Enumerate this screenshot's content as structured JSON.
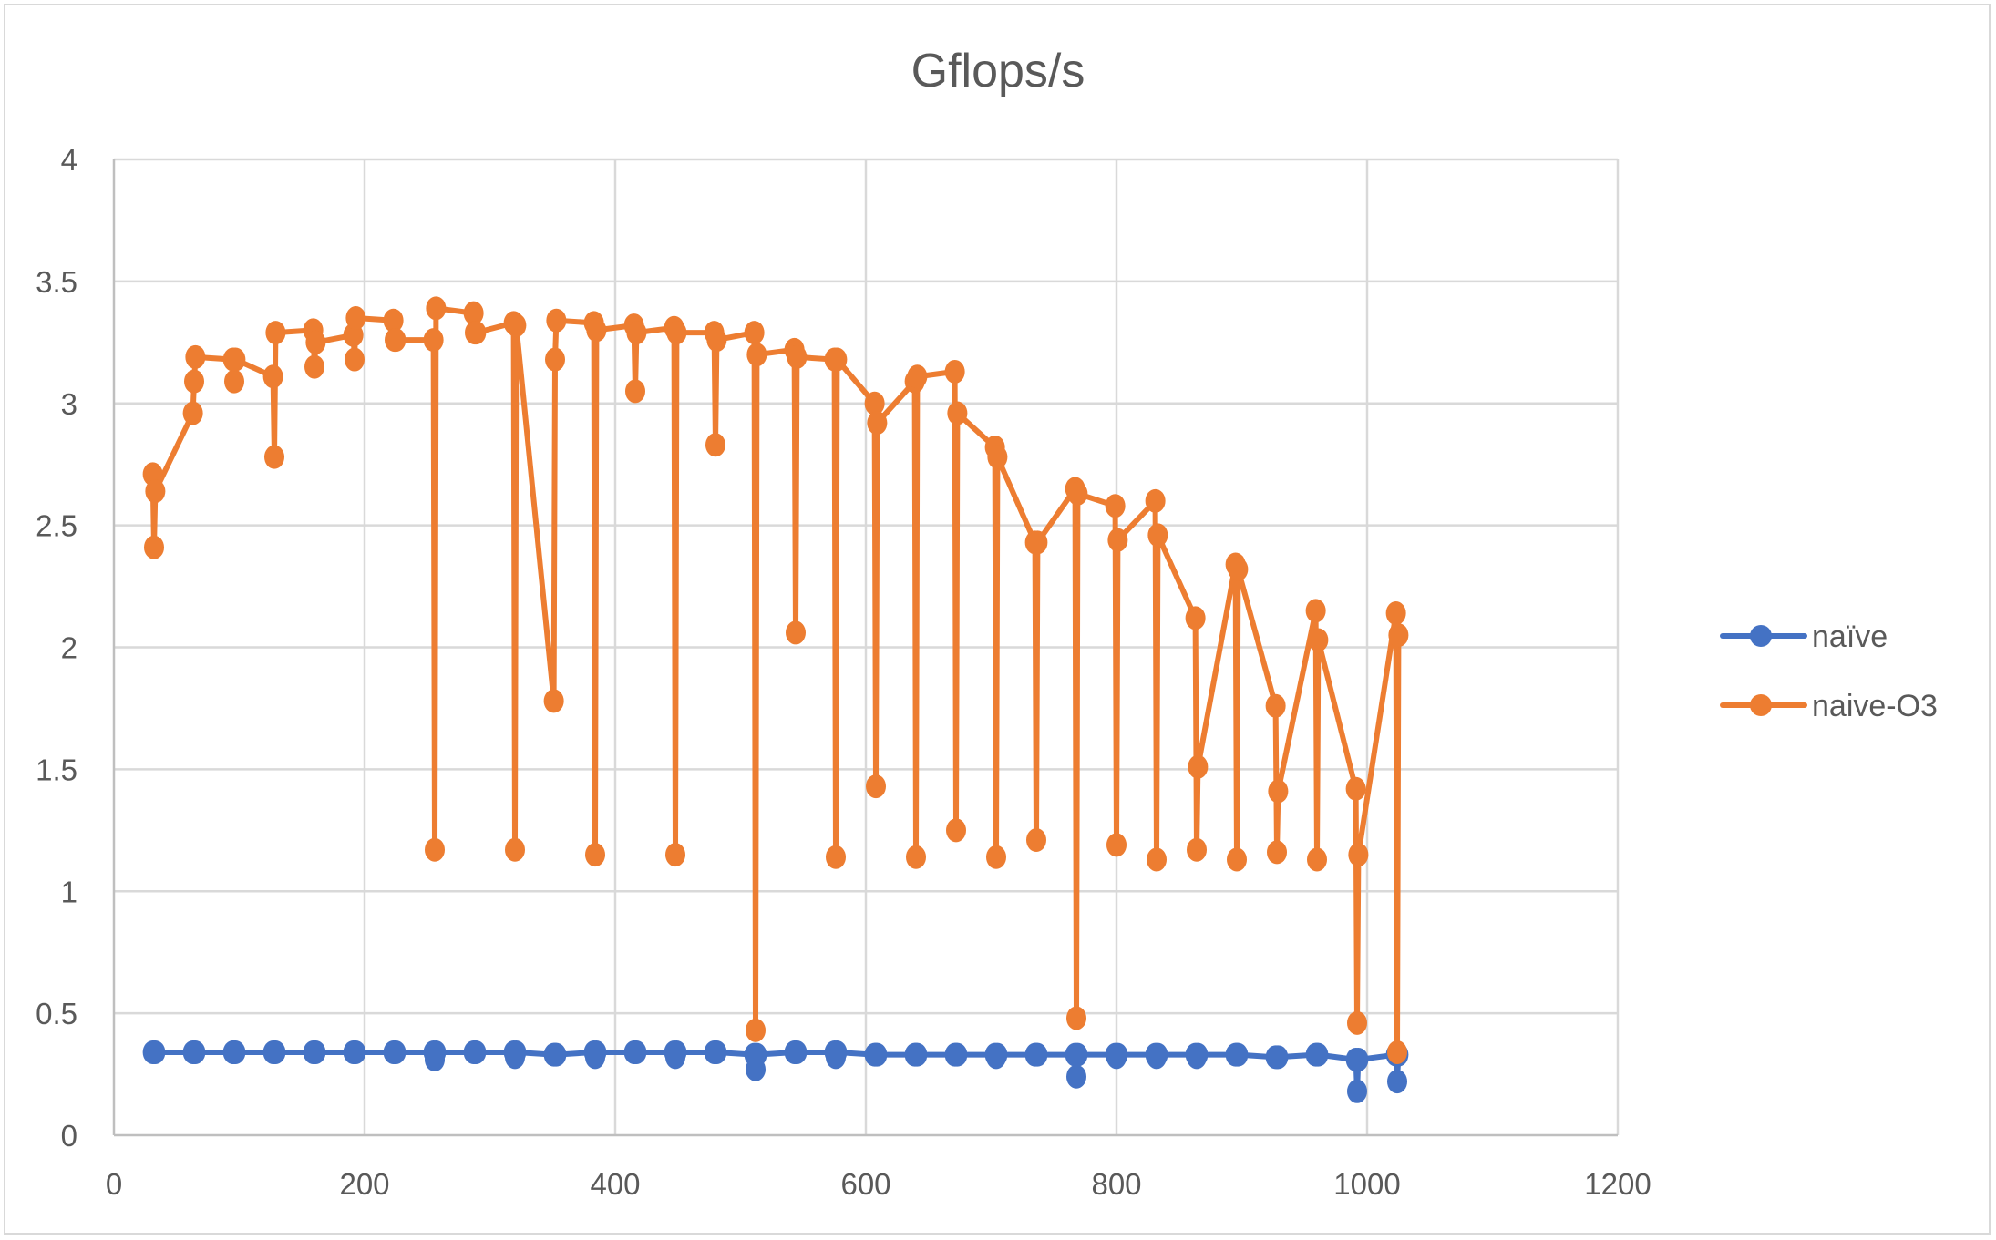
{
  "chart_data": {
    "type": "line",
    "title": "Gflops/s",
    "xlabel": "",
    "ylabel": "",
    "xlim": [
      0,
      1200
    ],
    "ylim": [
      0,
      4
    ],
    "x_ticks": [
      0,
      200,
      400,
      600,
      800,
      1000,
      1200
    ],
    "y_ticks": [
      0,
      0.5,
      1,
      1.5,
      2,
      2.5,
      3,
      3.5,
      4
    ],
    "y_tick_labels": [
      "0",
      "0.5",
      "1",
      "1.5",
      "2",
      "2.5",
      "3",
      "3.5",
      "4"
    ],
    "grid": true,
    "legend_position": "right",
    "x": [
      31,
      32,
      33,
      63,
      64,
      65,
      95,
      96,
      97,
      127,
      128,
      129,
      159,
      160,
      161,
      191,
      192,
      193,
      223,
      224,
      225,
      255,
      256,
      257,
      287,
      288,
      289,
      319,
      320,
      321,
      351,
      352,
      353,
      383,
      384,
      385,
      415,
      416,
      417,
      447,
      448,
      449,
      479,
      480,
      481,
      511,
      512,
      513,
      543,
      544,
      545,
      575,
      576,
      577,
      607,
      608,
      609,
      639,
      640,
      641,
      671,
      672,
      673,
      703,
      704,
      705,
      735,
      736,
      737,
      767,
      768,
      769,
      799,
      800,
      801,
      831,
      832,
      833,
      863,
      864,
      865,
      895,
      896,
      897,
      927,
      928,
      929,
      959,
      960,
      961,
      991,
      992,
      993,
      1023,
      1024,
      1025
    ],
    "series": [
      {
        "name": "naïve",
        "color": "#4472C4",
        "values": [
          0.34,
          0.34,
          0.34,
          0.34,
          0.34,
          0.34,
          0.34,
          0.34,
          0.34,
          0.34,
          0.34,
          0.34,
          0.34,
          0.34,
          0.34,
          0.34,
          0.34,
          0.34,
          0.34,
          0.34,
          0.34,
          0.34,
          0.31,
          0.34,
          0.34,
          0.34,
          0.34,
          0.34,
          0.32,
          0.34,
          0.33,
          0.33,
          0.33,
          0.34,
          0.32,
          0.34,
          0.34,
          0.34,
          0.34,
          0.34,
          0.32,
          0.34,
          0.34,
          0.34,
          0.34,
          0.33,
          0.27,
          0.33,
          0.34,
          0.34,
          0.34,
          0.34,
          0.32,
          0.34,
          0.33,
          0.33,
          0.33,
          0.33,
          0.33,
          0.33,
          0.33,
          0.33,
          0.33,
          0.33,
          0.32,
          0.33,
          0.33,
          0.33,
          0.33,
          0.33,
          0.24,
          0.33,
          0.33,
          0.32,
          0.33,
          0.33,
          0.32,
          0.33,
          0.33,
          0.32,
          0.33,
          0.33,
          0.33,
          0.33,
          0.32,
          0.32,
          0.32,
          0.33,
          0.33,
          0.33,
          0.31,
          0.18,
          0.31,
          0.33,
          0.22,
          0.33
        ]
      },
      {
        "name": "naive-O3",
        "color": "#ED7D31",
        "values": [
          2.71,
          2.41,
          2.64,
          2.96,
          3.09,
          3.19,
          3.18,
          3.09,
          3.18,
          3.11,
          2.78,
          3.29,
          3.3,
          3.15,
          3.25,
          3.28,
          3.18,
          3.35,
          3.34,
          3.26,
          3.26,
          3.26,
          1.17,
          3.39,
          3.37,
          3.29,
          3.29,
          3.33,
          1.17,
          3.32,
          1.78,
          3.18,
          3.34,
          3.33,
          1.15,
          3.3,
          3.32,
          3.05,
          3.29,
          3.31,
          1.15,
          3.29,
          3.29,
          2.83,
          3.26,
          3.29,
          0.43,
          3.2,
          3.22,
          2.06,
          3.19,
          3.18,
          1.14,
          3.18,
          3.0,
          1.43,
          2.92,
          3.09,
          1.14,
          3.11,
          3.13,
          1.25,
          2.96,
          2.82,
          1.14,
          2.78,
          2.43,
          1.21,
          2.43,
          2.65,
          0.48,
          2.63,
          2.58,
          1.19,
          2.44,
          2.6,
          1.13,
          2.46,
          2.12,
          1.17,
          1.51,
          2.34,
          1.13,
          2.32,
          1.76,
          1.16,
          1.41,
          2.15,
          1.13,
          2.03,
          1.42,
          0.46,
          1.15,
          2.14,
          0.34,
          2.05
        ]
      }
    ]
  },
  "legend": {
    "items": [
      {
        "label": "naïve",
        "color": "#4472C4"
      },
      {
        "label": "naive-O3",
        "color": "#ED7D31"
      }
    ]
  }
}
